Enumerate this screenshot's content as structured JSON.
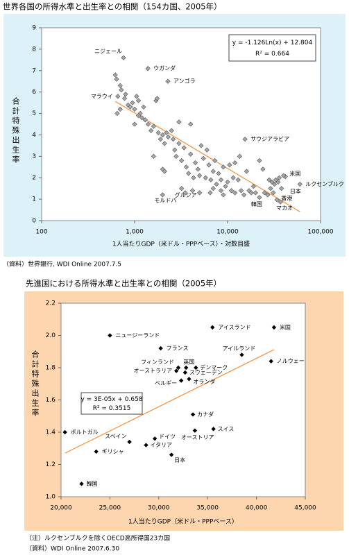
{
  "chart_data": [
    {
      "type": "scatter",
      "title": "世界各国の所得水準と出生率との相関（154カ国、2005年）",
      "xlabel": "1人当たりGDP（米ドル・PPPベース）・対数目盛",
      "ylabel": "合計特殊出生率",
      "source": "（資料）世界銀行, WDI Online 2007.7.5",
      "xscale": "log",
      "color": "#a6a6a6",
      "xlim": [
        100,
        100000
      ],
      "ylim": [
        0,
        9
      ],
      "xticks": [
        100,
        {
          "value": 1000,
          "label": "1,000"
        },
        {
          "value": 10000,
          "label": "10,000"
        },
        {
          "value": 100000,
          "label": "100,000"
        }
      ],
      "yticks": [
        0,
        1,
        2,
        3,
        4,
        5,
        6,
        7,
        8,
        9
      ],
      "trendline": {
        "form": "log",
        "slope": -1.126,
        "intercept": 12.804,
        "equation": "y = -1.126Ln(x) + 12.804",
        "r2": "R² = 0.664",
        "color": "#f79646"
      },
      "x": [
        760,
        1390,
        2280,
        660,
        15400,
        41800,
        60000,
        31000,
        34000,
        37000,
        22000,
        2000,
        3200,
        620,
        640,
        700,
        720,
        780,
        800,
        850,
        900,
        950,
        1000,
        1050,
        1100,
        1150,
        1200,
        1000,
        1100,
        1250,
        1300,
        700,
        650,
        1400,
        1500,
        1600,
        1700,
        1750,
        1800,
        1900,
        2000,
        2100,
        2200,
        2300,
        2000,
        2100,
        1600,
        2500,
        2700,
        2800,
        3000,
        3200,
        3400,
        3600,
        3800,
        4000,
        4300,
        4500,
        4800,
        5000,
        5200,
        5500,
        5800,
        6000,
        6300,
        6600,
        7000,
        7300,
        7600,
        8000,
        8500,
        9000,
        9500,
        10000,
        10500,
        11000,
        11500,
        12000,
        13000,
        14000,
        15000,
        16000,
        17000,
        18000,
        19000,
        20000,
        22000,
        24000,
        25000,
        27000,
        28000,
        29000,
        30000,
        32000,
        33000,
        35000,
        36000,
        38000,
        40000,
        3000,
        4000,
        2600,
        3500,
        4200,
        5000,
        6500,
        8500,
        9000,
        7000,
        12000,
        13500
      ],
      "values": [
        7.6,
        7.1,
        6.5,
        5.8,
        3.8,
        2.05,
        1.7,
        1.3,
        0.97,
        0.87,
        1.08,
        1.2,
        1.5,
        6.8,
        6.6,
        6.3,
        6.1,
        5.7,
        5.9,
        5.4,
        5.3,
        5.5,
        5.2,
        5.8,
        5.6,
        5.0,
        4.8,
        4.5,
        4.9,
        5.3,
        4.7,
        5.2,
        5.0,
        4.5,
        4.2,
        4.4,
        5.6,
        5.7,
        4.1,
        3.8,
        4.0,
        3.6,
        4.1,
        3.9,
        2.4,
        2.3,
        3.0,
        4.2,
        3.3,
        3.0,
        3.6,
        2.8,
        3.4,
        2.5,
        2.2,
        3.1,
        2.0,
        2.7,
        2.4,
        2.1,
        3.5,
        2.9,
        2.0,
        3.3,
        2.6,
        1.9,
        2.3,
        2.8,
        1.7,
        2.2,
        1.9,
        2.5,
        1.6,
        1.8,
        2.6,
        1.4,
        2.0,
        1.3,
        1.9,
        1.4,
        1.2,
        2.3,
        1.4,
        1.3,
        1.6,
        1.3,
        2.8,
        2.4,
        1.3,
        1.2,
        1.9,
        1.5,
        1.8,
        1.7,
        1.9,
        1.8,
        2.0,
        1.5,
        2.1,
        4.6,
        4.5,
        3.8,
        1.3,
        1.4,
        1.3,
        1.3,
        1.4,
        1.2,
        1.5,
        2.7,
        3.0
      ],
      "labels": [
        "ニジェール",
        "ウガンダ",
        "アンゴラ",
        "マラウイ",
        "サウジアラビア",
        "米国",
        "ルクセンブルク",
        "日本",
        "香港",
        "マカオ",
        "韓国",
        "モルドバ",
        "グルジア",
        null,
        null,
        null,
        null,
        null,
        null,
        null,
        null,
        null,
        null,
        null,
        null,
        null,
        null,
        null,
        null,
        null,
        null,
        null,
        null,
        null,
        null,
        null,
        null,
        null,
        null,
        null,
        null,
        null,
        null,
        null,
        null,
        null,
        null,
        null,
        null,
        null,
        null,
        null,
        null,
        null,
        null,
        null,
        null,
        null,
        null,
        null,
        null,
        null,
        null,
        null,
        null,
        null,
        null,
        null,
        null,
        null,
        null,
        null,
        null,
        null,
        null,
        null,
        null,
        null,
        null,
        null,
        null,
        null,
        null,
        null,
        null,
        null,
        null,
        null,
        null,
        null,
        null,
        null,
        null,
        null,
        null,
        null,
        null,
        null,
        null,
        null,
        null,
        null,
        null,
        null,
        null,
        null,
        null,
        null,
        null
      ]
    },
    {
      "type": "scatter",
      "title": "先進国における所得水準と出生率との相関（2005年）",
      "xlabel": "1人当たりGDP（米ドル・PPPベース）",
      "ylabel": "合計特殊出生率",
      "note": "（注）ルクセンブルクを除くOECD高所得国23カ国",
      "source": "（資料）WDI Online 2007.6.30",
      "xscale": "linear",
      "color": "#000000",
      "xlim": [
        20000,
        45000
      ],
      "ylim": [
        1.0,
        2.2
      ],
      "xticks": [
        {
          "value": 20000,
          "label": "20,000"
        },
        {
          "value": 25000,
          "label": "25,000"
        },
        {
          "value": 30000,
          "label": "30,000"
        },
        {
          "value": 35000,
          "label": "35,000"
        },
        {
          "value": 40000,
          "label": "40,000"
        },
        {
          "value": 45000,
          "label": "45,000"
        }
      ],
      "yticks": [
        {
          "value": 1.0,
          "label": "1.0"
        },
        1.2,
        1.4,
        1.6,
        1.8,
        {
          "value": 2.0,
          "label": "2.0"
        },
        2.2
      ],
      "trendline": {
        "form": "linear",
        "slope": 3e-05,
        "intercept": 0.658,
        "equation": "y = 3E-05x + 0.658",
        "r2": "R² = 0.3515",
        "color": "#f79646"
      },
      "x": [
        25000,
        30200,
        35500,
        41800,
        38500,
        41500,
        32000,
        32800,
        33800,
        31800,
        32700,
        32300,
        33100,
        33500,
        35600,
        33700,
        20400,
        27000,
        29600,
        28700,
        31300,
        23600,
        22100
      ],
      "values": [
        2.0,
        1.92,
        2.05,
        2.05,
        1.88,
        1.84,
        1.8,
        1.8,
        1.8,
        1.78,
        1.77,
        1.72,
        1.73,
        1.51,
        1.42,
        1.41,
        1.4,
        1.34,
        1.36,
        1.32,
        1.26,
        1.28,
        1.08
      ],
      "labels": [
        "ニュージーランド",
        "フランス",
        "アイスランド",
        "米国",
        "アイルランド",
        "ノルウェー",
        "フィンランド",
        "英国",
        "デンマーク",
        "オーストラリア",
        "スウェーデン",
        "ベルギー",
        "オランダ",
        "カナダ",
        "スイス",
        "オーストリア",
        "ポルトガル",
        "スペイン",
        "ドイツ",
        "イタリア",
        "日本",
        "ギリシャ",
        "韓国"
      ]
    }
  ]
}
